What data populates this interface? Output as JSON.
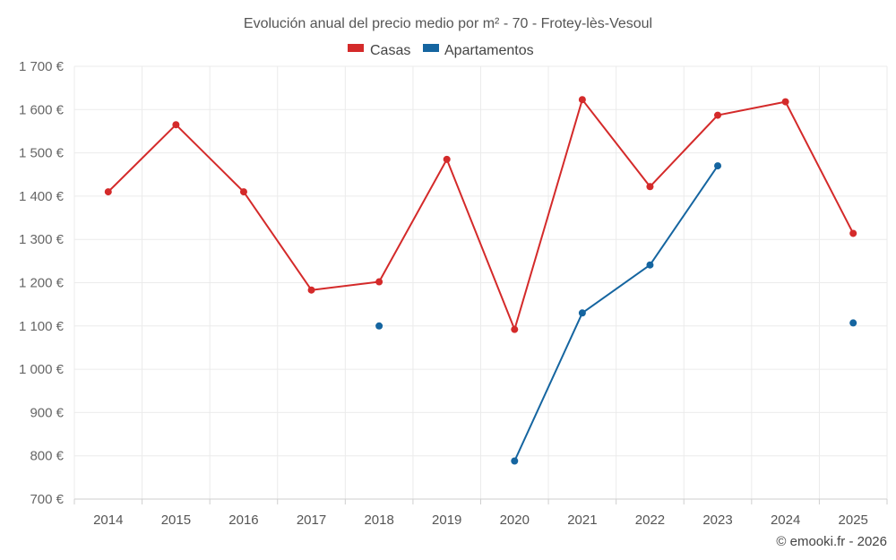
{
  "chart_data": {
    "type": "line",
    "title": "Evolución anual del precio medio por m² - 70 - Frotey-lès-Vesoul",
    "categories": [
      "2014",
      "2015",
      "2016",
      "2017",
      "2018",
      "2019",
      "2020",
      "2021",
      "2022",
      "2023",
      "2024",
      "2025"
    ],
    "series": [
      {
        "name": "Casas",
        "color": "#d42a2a",
        "values": [
          1410,
          1565,
          1410,
          1183,
          1202,
          1485,
          1092,
          1623,
          1422,
          1587,
          1618,
          1314
        ]
      },
      {
        "name": "Apartamentos",
        "color": "#1565a0",
        "values": [
          null,
          null,
          null,
          null,
          1100,
          null,
          788,
          1130,
          1241,
          1470,
          null,
          1107
        ]
      }
    ],
    "y_ticks": [
      700,
      800,
      900,
      1000,
      1100,
      1200,
      1300,
      1400,
      1500,
      1600,
      1700
    ],
    "y_tick_labels": [
      "700 €",
      "800 €",
      "900 €",
      "1 000 €",
      "1 100 €",
      "1 200 €",
      "1 300 €",
      "1 400 €",
      "1 500 €",
      "1 600 €",
      "1 700 €"
    ],
    "ylim": [
      700,
      1700
    ],
    "xlabel": "",
    "ylabel": "",
    "grid": true,
    "legend_position": "top-center"
  },
  "credit": "© emooki.fr - 2026"
}
